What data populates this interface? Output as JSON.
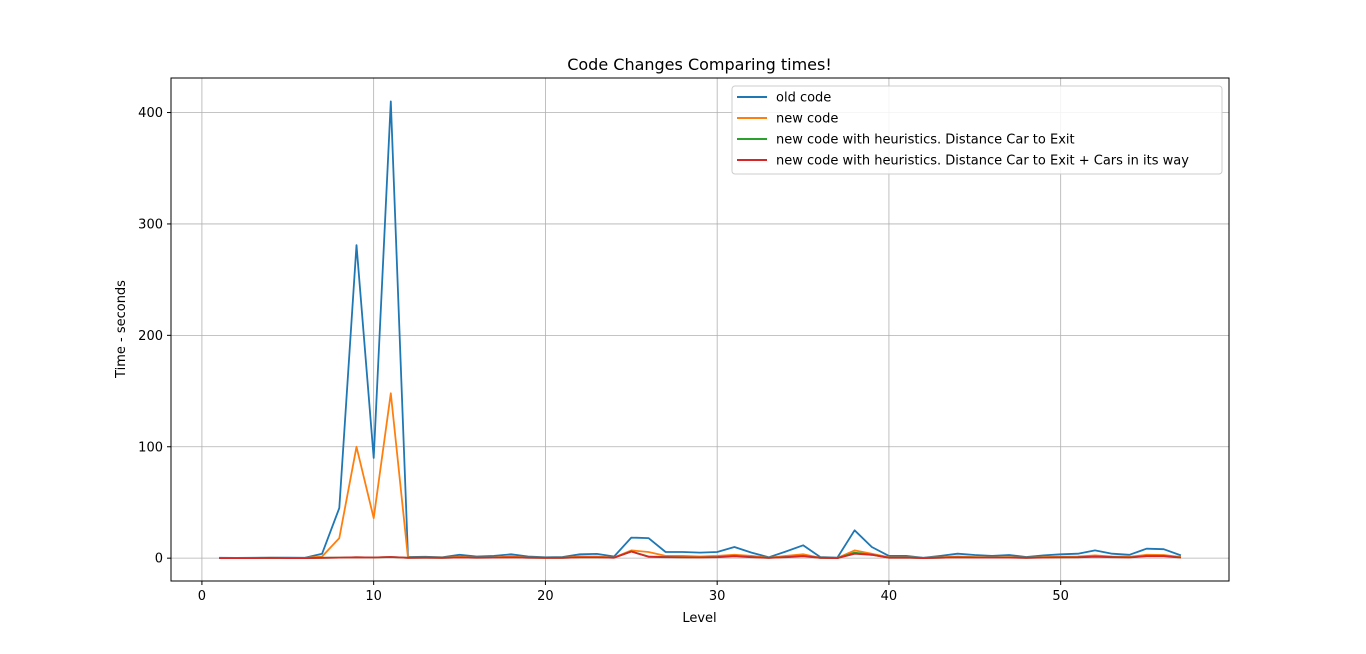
{
  "chart_data": {
    "type": "line",
    "title": "Code Changes Comparing times!",
    "xlabel": "Level",
    "ylabel": "Time - seconds",
    "xlim": [
      -1.8,
      59.8
    ],
    "ylim": [
      -20.5,
      431
    ],
    "xticks": [
      0,
      10,
      20,
      30,
      40,
      50
    ],
    "yticks": [
      0,
      100,
      200,
      300,
      400
    ],
    "grid": true,
    "legend_position": "top-right",
    "x": [
      1,
      2,
      3,
      4,
      5,
      6,
      7,
      8,
      9,
      10,
      11,
      12,
      13,
      14,
      15,
      16,
      17,
      18,
      19,
      20,
      21,
      22,
      23,
      24,
      25,
      26,
      27,
      28,
      29,
      30,
      31,
      32,
      33,
      34,
      35,
      36,
      37,
      38,
      39,
      40,
      41,
      42,
      43,
      44,
      45,
      46,
      47,
      48,
      49,
      50,
      51,
      52,
      53,
      54,
      55,
      56,
      57
    ],
    "series": [
      {
        "name": "old code",
        "color": "#1f77b4",
        "values": [
          0.3,
          0.2,
          0.3,
          0.5,
          0.4,
          0.3,
          4,
          45,
          281,
          90,
          410,
          1,
          1.2,
          0.8,
          3,
          1.5,
          2,
          3.5,
          1.5,
          0.8,
          1,
          3.5,
          3.8,
          1.5,
          18.5,
          18,
          5.5,
          5.5,
          5,
          5.5,
          10,
          5,
          0.8,
          6,
          11.5,
          1,
          0.5,
          25,
          10,
          2,
          2,
          0.3,
          2,
          4,
          2.8,
          2,
          2.8,
          1,
          2.5,
          3.5,
          4,
          7,
          4,
          3,
          8.5,
          8,
          2.5
        ]
      },
      {
        "name": "new code",
        "color": "#ff7f0e",
        "values": [
          0.2,
          0.2,
          0.2,
          0.3,
          0.2,
          0.2,
          1.5,
          18,
          100,
          36,
          148,
          0.5,
          0.6,
          0.4,
          1.2,
          0.6,
          0.8,
          1.5,
          0.6,
          0.3,
          0.4,
          1.5,
          1.5,
          0.6,
          7,
          5.5,
          2,
          2,
          1.5,
          2,
          3,
          2,
          0.3,
          2,
          3.5,
          0.4,
          0.2,
          7,
          4,
          0.8,
          0.8,
          0.2,
          0.8,
          1.5,
          1,
          0.8,
          1,
          0.4,
          1,
          1.2,
          1.5,
          2.5,
          1.5,
          1.2,
          3,
          2.8,
          1
        ]
      },
      {
        "name": "new code with heuristics. Distance Car to Exit",
        "color": "#2ca02c",
        "values": [
          0.1,
          0.1,
          0.1,
          0.2,
          0.1,
          0.1,
          0.3,
          0.5,
          0.8,
          0.6,
          1,
          0.3,
          0.4,
          0.3,
          0.6,
          0.4,
          0.5,
          0.7,
          0.4,
          0.2,
          0.3,
          0.7,
          0.7,
          0.4,
          6,
          1.5,
          1,
          0.8,
          0.7,
          1,
          2,
          1,
          0.2,
          1,
          2,
          0.3,
          0.1,
          5,
          3,
          0.4,
          0.5,
          0.1,
          0.4,
          0.8,
          0.6,
          0.5,
          0.6,
          0.3,
          0.6,
          0.8,
          0.9,
          1.5,
          1,
          0.7,
          2,
          2,
          0.6
        ]
      },
      {
        "name": "new code with heuristics. Distance Car to Exit + Cars in its way",
        "color": "#d62728",
        "values": [
          0.1,
          0.1,
          0.1,
          0.2,
          0.1,
          0.1,
          0.3,
          0.5,
          0.8,
          0.6,
          1,
          0.3,
          0.4,
          0.3,
          0.6,
          0.4,
          0.5,
          0.7,
          0.4,
          0.2,
          0.3,
          0.7,
          0.7,
          0.4,
          6,
          1.2,
          0.9,
          0.7,
          0.6,
          0.9,
          1.8,
          0.9,
          0.2,
          0.9,
          1.8,
          0.3,
          0.1,
          4,
          3,
          0.4,
          0.5,
          0.1,
          0.4,
          0.7,
          0.5,
          0.5,
          0.5,
          0.3,
          0.5,
          0.7,
          0.8,
          1.3,
          0.9,
          0.6,
          1.8,
          1.8,
          0.5
        ]
      }
    ]
  }
}
